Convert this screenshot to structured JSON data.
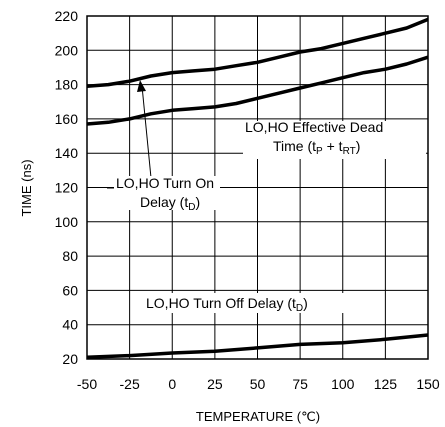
{
  "chart_data": {
    "type": "line",
    "xlabel": "TEMPERATURE (℃)",
    "ylabel": "TIME (ns)",
    "xlim": [
      -50,
      150
    ],
    "ylim": [
      20,
      220
    ],
    "x_ticks": [
      "-50",
      "-25",
      "0",
      "25",
      "50",
      "75",
      "100",
      "125",
      "150"
    ],
    "y_ticks": [
      "20",
      "40",
      "60",
      "80",
      "100",
      "120",
      "140",
      "160",
      "180",
      "200",
      "220"
    ],
    "grid": true,
    "series": [
      {
        "name": "LO,HO Turn On Delay (tD)",
        "x": [
          -50,
          -37.5,
          -25,
          -12.5,
          0,
          12.5,
          25,
          37.5,
          50,
          62.5,
          75,
          87.5,
          100,
          112.5,
          125,
          137.5,
          150
        ],
        "y": [
          179,
          180,
          182,
          185,
          187,
          188,
          189,
          191,
          193,
          196,
          199,
          201,
          204,
          207,
          210,
          213,
          218
        ]
      },
      {
        "name": "LO,HO Effective Dead Time (tP + tRT)",
        "x": [
          -50,
          -37.5,
          -25,
          -12.5,
          0,
          12.5,
          25,
          37.5,
          50,
          62.5,
          75,
          87.5,
          100,
          112.5,
          125,
          137.5,
          150
        ],
        "y": [
          157,
          158,
          160,
          163,
          165,
          166,
          167,
          169,
          172,
          175,
          178,
          181,
          184,
          187,
          189,
          192,
          196
        ]
      },
      {
        "name": "LO,HO Turn Off Delay (tD)",
        "x": [
          -50,
          -25,
          0,
          25,
          50,
          75,
          100,
          125,
          150
        ],
        "y": [
          21,
          22,
          23.5,
          24.5,
          26.5,
          28.5,
          29.5,
          31.5,
          34
        ]
      }
    ],
    "annotations": {
      "turn_on": [
        "LO,HO Turn On",
        "Delay (t",
        "D",
        ")"
      ],
      "dead_time": [
        "LO,HO Effective Dead",
        "Time (t",
        "P",
        " + t",
        "RT",
        ")"
      ],
      "turn_off": [
        "LO,HO Turn Off Delay (t",
        "D",
        ")"
      ]
    },
    "colors": {
      "line": "#000000",
      "grid": "#000000",
      "background": "#ffffff"
    }
  }
}
